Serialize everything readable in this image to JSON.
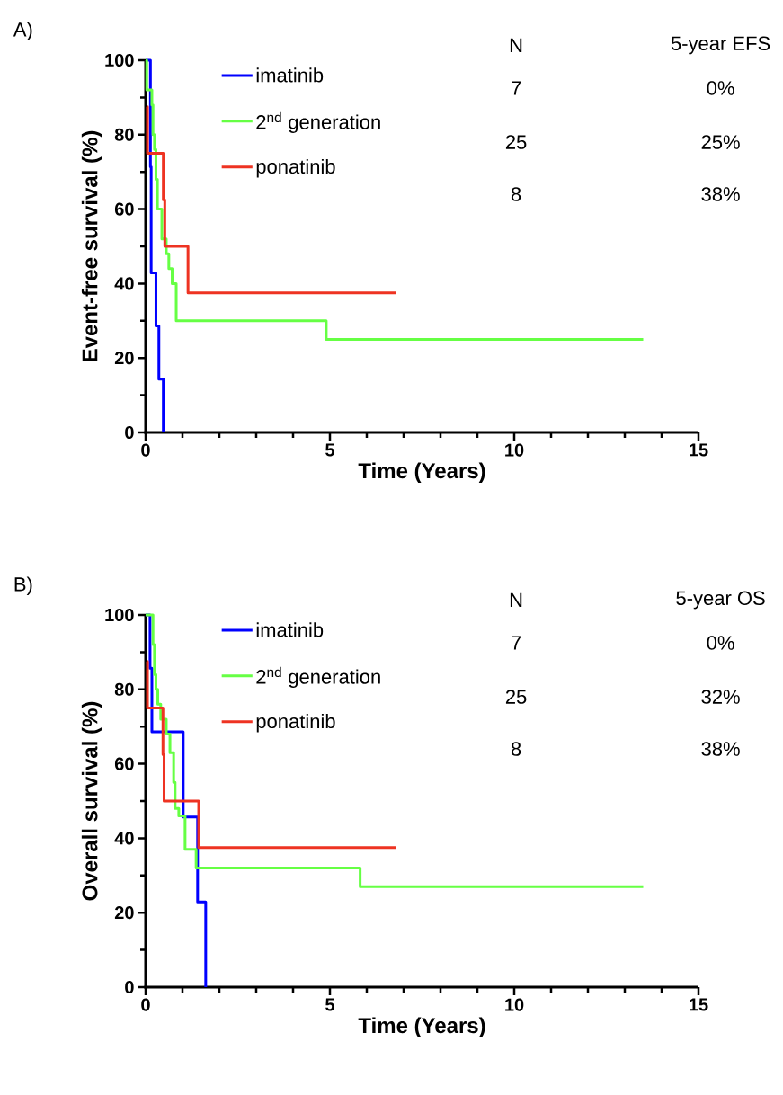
{
  "chart_data": [
    {
      "type": "step",
      "title": "A)",
      "xlabel": "Time (Years)",
      "ylabel": "Event-free survival (%)",
      "xlim": [
        0,
        15
      ],
      "ylim": [
        0,
        100
      ],
      "xticks": [
        0,
        5,
        10,
        15
      ],
      "yticks": [
        0,
        20,
        40,
        60,
        80,
        100
      ],
      "legend": "top",
      "series": [
        {
          "name": "imatinib",
          "color": "#0000ff",
          "x": [
            0,
            0.13,
            0.15,
            0.28,
            0.36,
            0.48
          ],
          "values": [
            100,
            71.4,
            42.9,
            28.6,
            14.3,
            0
          ]
        },
        {
          "name": "2$^{nd}$ generation",
          "color": "#66ff44",
          "x": [
            0,
            0.03,
            0.17,
            0.2,
            0.24,
            0.28,
            0.32,
            0.44,
            0.56,
            0.63,
            0.72,
            0.83,
            4.9,
            13.5
          ],
          "values": [
            100,
            92,
            88,
            80,
            76,
            68,
            60,
            52,
            48,
            44,
            40,
            30,
            25,
            25
          ]
        },
        {
          "name": "ponatinib",
          "color": "#ee3322",
          "x": [
            0.03,
            0.05,
            0.48,
            0.52,
            1.15,
            6.8
          ],
          "values": [
            87.5,
            75,
            62.5,
            50,
            37.5,
            37.5
          ]
        }
      ],
      "annotations": [
        "N",
        "5-year EFS",
        "7",
        "0%",
        "25",
        "25%",
        "8",
        "38%"
      ]
    },
    {
      "type": "step",
      "title": "B)",
      "xlabel": "Time (Years)",
      "ylabel": "Overall survival (%)",
      "xlim": [
        0,
        15
      ],
      "ylim": [
        0,
        100
      ],
      "xticks": [
        0,
        5,
        10,
        15
      ],
      "yticks": [
        0,
        20,
        40,
        60,
        80,
        100
      ],
      "legend": "top",
      "series": [
        {
          "name": "imatinib",
          "color": "#0000ff",
          "x": [
            0,
            0.12,
            0.17,
            1.02,
            1.41,
            1.63
          ],
          "values": [
            100,
            85.7,
            68.6,
            45.7,
            22.9,
            0
          ]
        },
        {
          "name": "2$^{nd}$ generation",
          "color": "#66ff44",
          "x": [
            0,
            0.2,
            0.24,
            0.28,
            0.33,
            0.41,
            0.56,
            0.66,
            0.76,
            0.8,
            0.9,
            1.07,
            1.37,
            5.82,
            13.5
          ],
          "values": [
            100,
            92,
            84,
            80,
            76,
            72,
            68,
            63,
            55,
            48,
            46,
            37,
            32,
            27,
            27
          ]
        },
        {
          "name": "ponatinib",
          "color": "#ee3322",
          "x": [
            0.03,
            0.05,
            0.47,
            0.5,
            1.44,
            6.8
          ],
          "values": [
            87.5,
            75,
            62.5,
            50,
            37.5,
            37.5
          ]
        }
      ],
      "annotations": [
        "N",
        "5-year OS",
        "7",
        "0%",
        "25",
        "32%",
        "8",
        "38%"
      ]
    }
  ]
}
